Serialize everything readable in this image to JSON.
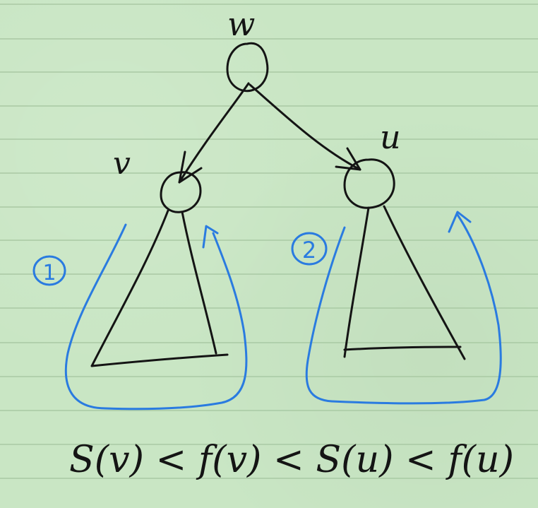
{
  "colors": {
    "paper": "#c9e6c4",
    "rule_line": "#a9c9a4",
    "ink_black": "#141414",
    "ink_blue": "#2a7be0"
  },
  "nodes": {
    "w": "w",
    "v": "v",
    "u": "u"
  },
  "markers": {
    "first": "1",
    "second": "2"
  },
  "formula": "S(v) < f(v) < S(u) < f(u)"
}
